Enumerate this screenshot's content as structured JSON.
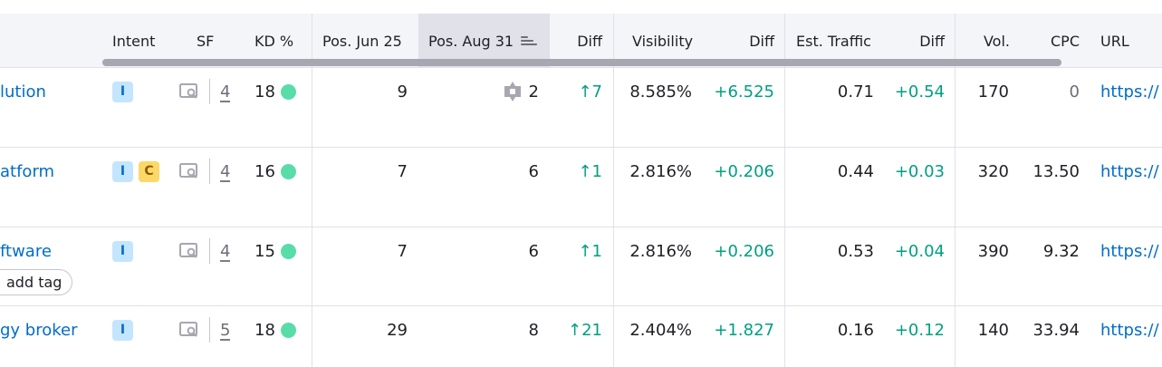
{
  "header": {
    "intent": "Intent",
    "sf": "SF",
    "kd": "KD %",
    "pos_prev": "Pos. Jun 25",
    "pos_curr": "Pos. Aug 31",
    "diff_pos": "Diff",
    "visibility": "Visibility",
    "diff_vis": "Diff",
    "est_traffic": "Est. Traffic",
    "diff_traffic": "Diff",
    "volume": "Vol.",
    "cpc": "CPC",
    "url": "URL"
  },
  "rows": [
    {
      "keyword": "lution",
      "intents": [
        "I"
      ],
      "sf_count": "4",
      "kd": "18",
      "pos_prev": "9",
      "pos_curr": "2",
      "diff": "↑7",
      "visibility": "8.585%",
      "vis_diff": "+6.525",
      "traffic": "0.71",
      "traffic_diff": "+0.54",
      "volume": "170",
      "cpc": "0",
      "url": "https://"
    },
    {
      "keyword": "atform",
      "intents": [
        "I",
        "C"
      ],
      "sf_count": "4",
      "kd": "16",
      "pos_prev": "7",
      "pos_curr": "6",
      "diff": "↑1",
      "visibility": "2.816%",
      "vis_diff": "+0.206",
      "traffic": "0.44",
      "traffic_diff": "+0.03",
      "volume": "320",
      "cpc": "13.50",
      "url": "https://"
    },
    {
      "keyword": "ftware",
      "intents": [
        "I"
      ],
      "sf_count": "4",
      "kd": "15",
      "pos_prev": "7",
      "pos_curr": "6",
      "diff": "↑1",
      "visibility": "2.816%",
      "vis_diff": "+0.206",
      "traffic": "0.53",
      "traffic_diff": "+0.04",
      "volume": "390",
      "cpc": "9.32",
      "url": "https://",
      "tag_button": "add tag"
    },
    {
      "keyword": "gy broker",
      "intents": [
        "I"
      ],
      "sf_count": "5",
      "kd": "18",
      "pos_prev": "29",
      "pos_curr": "8",
      "diff": "↑21",
      "visibility": "2.404%",
      "vis_diff": "+1.827",
      "traffic": "0.16",
      "traffic_diff": "+0.12",
      "volume": "140",
      "cpc": "33.94",
      "url": "https://"
    }
  ],
  "colors": {
    "link": "#006dca",
    "positive": "#009f81",
    "kd_dot": "#59dda8",
    "intent_i_bg": "#c4e5fe",
    "intent_c_bg": "#fcd868",
    "header_bg": "#f4f5f9",
    "sorted_header_bg": "#e0e1e9"
  },
  "icons": {
    "sf": "serp-features-icon",
    "serp_feature": "serp-feature-badge-icon",
    "sort": "sort-descending-icon"
  }
}
